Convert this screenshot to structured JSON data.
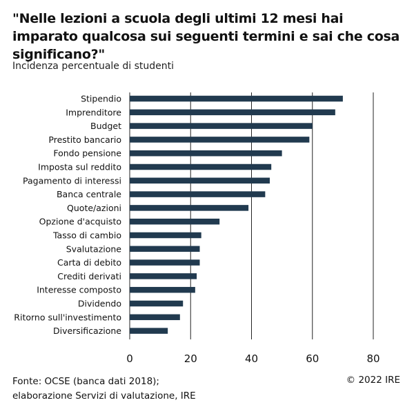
{
  "header": {
    "title": "\"Nelle lezioni a scuola degli ultimi 12 mesi hai imparato qualcosa sui seguenti termini e sai che cosa significano?\"",
    "subtitle": "Incidenza percentuale di studenti"
  },
  "footer": {
    "source_line1": "Fonte: OCSE (banca dati 2018);",
    "source_line2": "elaborazione Servizi di valutazione, IRE",
    "copyright": "© 2022 IRE"
  },
  "colors": {
    "bar": "#213a4f",
    "grid": "#222222"
  },
  "chart_data": {
    "type": "bar",
    "orientation": "horizontal",
    "title": "\"Nelle lezioni a scuola degli ultimi 12 mesi hai imparato qualcosa sui seguenti termini e sai che cosa significano?\"",
    "subtitle": "Incidenza percentuale di studenti",
    "categories": [
      "Stipendio",
      "Imprenditore",
      "Budget",
      "Prestito bancario",
      "Fondo pensione",
      "Imposta sul reddito",
      "Pagamento di interessi",
      "Banca centrale",
      "Quote/azioni",
      "Opzione d'acquisto",
      "Tasso di cambio",
      "Svalutazione",
      "Carta di debito",
      "Crediti derivati",
      "Interesse composto",
      "Dividendo",
      "Ritorno sull'investimento",
      "Diversificazione"
    ],
    "values": [
      70,
      67.5,
      60,
      59,
      50,
      46.5,
      46,
      44.5,
      39,
      29.5,
      23.5,
      23,
      23,
      22,
      21.5,
      17.5,
      16.5,
      12.5
    ],
    "xlim": [
      0,
      80
    ],
    "xticks": [
      0,
      20,
      40,
      60,
      80
    ],
    "grid": "vertical"
  }
}
